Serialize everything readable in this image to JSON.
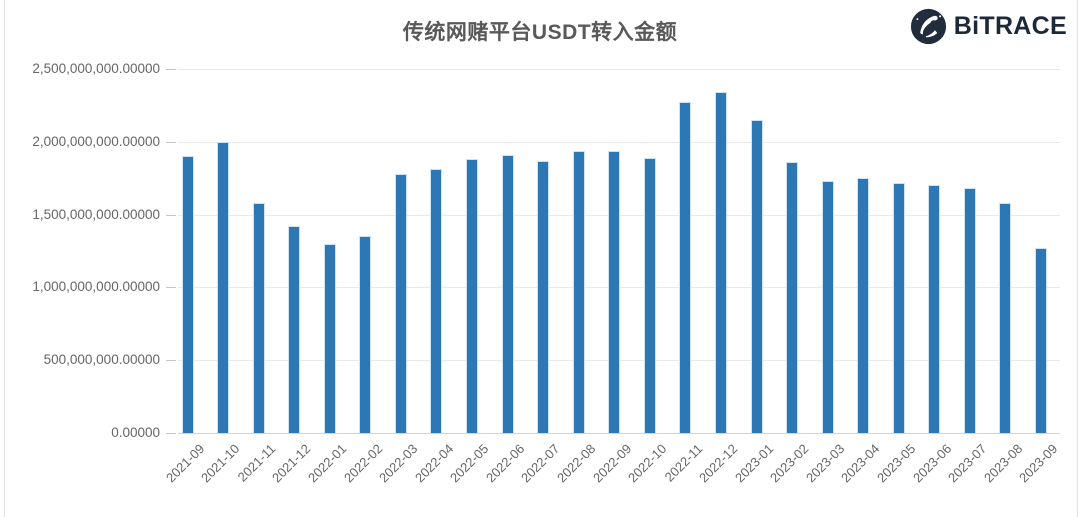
{
  "header": {
    "logo_text": "BiTRACE",
    "logo_icon": "globe-swoosh-icon",
    "logo_color": "#1d2838"
  },
  "chart_data": {
    "type": "bar",
    "title": "传统网赌平台USDT转入金额",
    "xlabel": "",
    "ylabel": "",
    "legend": "none",
    "grid": true,
    "ylim": [
      0,
      2500000000
    ],
    "bar_color": "#2e77b5",
    "grid_color": "#e8e8e8",
    "axis_color": "#d3d3d3",
    "label_color": "#666666",
    "title_color": "#595959",
    "y_ticks": [
      {
        "value": 0,
        "label": "0.00000"
      },
      {
        "value": 500000000,
        "label": "500,000,000.00000"
      },
      {
        "value": 1000000000,
        "label": "1,000,000,000.00000"
      },
      {
        "value": 1500000000,
        "label": "1,500,000,000.00000"
      },
      {
        "value": 2000000000,
        "label": "2,000,000,000.00000"
      },
      {
        "value": 2500000000,
        "label": "2,500,000,000.00000"
      }
    ],
    "categories": [
      "2021-09",
      "2021-10",
      "2021-11",
      "2021-12",
      "2022-01",
      "2022-02",
      "2022-03",
      "2022-04",
      "2022-05",
      "2022-06",
      "2022-07",
      "2022-08",
      "2022-09",
      "2022-10",
      "2022-11",
      "2022-12",
      "2023-01",
      "2023-02",
      "2023-03",
      "2023-04",
      "2023-05",
      "2023-06",
      "2023-07",
      "2023-08",
      "2023-09"
    ],
    "values": [
      1900000000,
      2000000000,
      1580000000,
      1420000000,
      1300000000,
      1350000000,
      1780000000,
      1810000000,
      1880000000,
      1910000000,
      1870000000,
      1940000000,
      1940000000,
      1890000000,
      2270000000,
      2340000000,
      2150000000,
      1860000000,
      1730000000,
      1750000000,
      1720000000,
      1700000000,
      1680000000,
      1580000000,
      1270000000
    ]
  }
}
